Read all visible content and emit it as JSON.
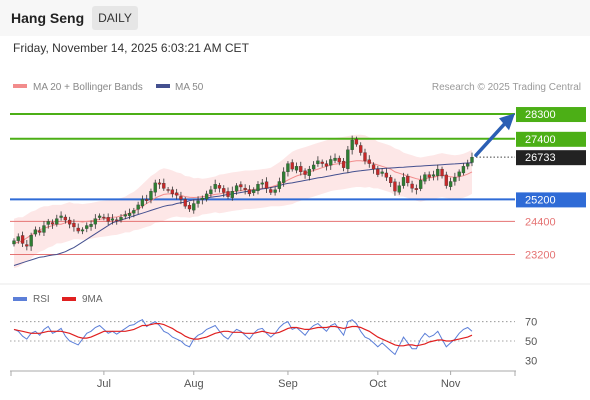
{
  "header": {
    "symbol": "Hang Seng",
    "period": "DAILY",
    "datetime": "Friday, November 14, 2025 6:03:21 AM CET"
  },
  "legend": {
    "ma20_label": "MA 20 + Bollinger Bands",
    "ma50_label": "MA 50",
    "credit": "Research © 2025 Trading Central"
  },
  "colors": {
    "up": "#2e7d32",
    "down": "#c62828",
    "ma20": "#f28c8c",
    "ma50": "#44508f",
    "band": "#fde3e3",
    "resistance": "#4caf16",
    "support": "#2f6bd6",
    "minor_support": "#e57373",
    "last": "#222222",
    "arrow": "#2b5fb4",
    "rsi": "#5c7fd8",
    "rsi_ma": "#e02020"
  },
  "rsi_panel": {
    "rsi_label": "RSI",
    "ma_label": "9MA"
  },
  "chart_data": [
    {
      "type": "candlestick",
      "y_range": [
        22200,
        29100
      ],
      "x_labels": [
        "Jul",
        "Aug",
        "Sep",
        "Oct",
        "Nov"
      ],
      "levels": [
        {
          "value": 28300,
          "label": "28300",
          "role": "resistance"
        },
        {
          "value": 27400,
          "label": "27400",
          "role": "resistance"
        },
        {
          "value": 26733,
          "label": "26733",
          "role": "last"
        },
        {
          "value": 25200,
          "label": "25200",
          "role": "support"
        },
        {
          "value": 24400,
          "label": "24400",
          "role": "minor_support"
        },
        {
          "value": 23200,
          "label": "23200",
          "role": "minor_support"
        }
      ],
      "closes": [
        23700,
        23850,
        23600,
        23500,
        23900,
        24100,
        24000,
        24250,
        24400,
        24300,
        24500,
        24600,
        24450,
        24300,
        24200,
        24050,
        24100,
        24250,
        24300,
        24500,
        24600,
        24550,
        24400,
        24500,
        24450,
        24550,
        24650,
        24700,
        24800,
        25000,
        25200,
        25150,
        25500,
        25800,
        25750,
        25600,
        25550,
        25400,
        25350,
        25200,
        24950,
        24850,
        25050,
        25150,
        25250,
        25400,
        25550,
        25750,
        25600,
        25450,
        25300,
        25500,
        25700,
        25650,
        25550,
        25400,
        25550,
        25750,
        25800,
        25600,
        25450,
        25550,
        25850,
        26200,
        26500,
        26300,
        26400,
        26200,
        26100,
        26300,
        26450,
        26600,
        26500,
        26400,
        26650,
        26700,
        26550,
        26350,
        27000,
        27350,
        27200,
        26900,
        26600,
        26500,
        26300,
        26100,
        26200,
        26000,
        25800,
        25500,
        25700,
        26000,
        25800,
        25600,
        25550,
        25900,
        26100,
        26000,
        26100,
        26300,
        26050,
        25700,
        25850,
        26000,
        26200,
        26400,
        26500,
        26733
      ],
      "ma20": [
        23600,
        23650,
        23700,
        23800,
        23900,
        24000,
        24100,
        24150,
        24200,
        24250,
        24300,
        24300,
        24350,
        24400,
        24400,
        24400,
        24380,
        24400,
        24420,
        24450,
        24480,
        24500,
        24520,
        24550,
        24560,
        24600,
        24650,
        24700,
        24780,
        24850,
        24950,
        25050,
        25150,
        25250,
        25320,
        25380,
        25400,
        25400,
        25380,
        25350,
        25300,
        25280,
        25270,
        25280,
        25300,
        25320,
        25350,
        25380,
        25400,
        25420,
        25450,
        25480,
        25500,
        25520,
        25550,
        25550,
        25560,
        25580,
        25600,
        25620,
        25650,
        25700,
        25750,
        25820,
        25900,
        25980,
        26050,
        26100,
        26150,
        26200,
        26250,
        26300,
        26350,
        26400,
        26450,
        26480,
        26500,
        26520,
        26550,
        26580,
        26600,
        26600,
        26580,
        26550,
        26500,
        26450,
        26400,
        26350,
        26300,
        26200,
        26150,
        26100,
        26050,
        26000,
        25950,
        25920,
        25950,
        25980,
        26000,
        26050,
        26080,
        26050,
        26020,
        26000,
        26020,
        26060,
        26120,
        26200
      ],
      "ma50": [
        22800,
        22850,
        22900,
        22950,
        23000,
        23050,
        23100,
        23120,
        23150,
        23180,
        23200,
        23250,
        23300,
        23380,
        23450,
        23550,
        23650,
        23750,
        23850,
        23950,
        24050,
        24150,
        24250,
        24350,
        24400,
        24450,
        24500,
        24550,
        24600,
        24650,
        24700,
        24750,
        24800,
        24850,
        24900,
        24950,
        24980,
        25000,
        25050,
        25080,
        25100,
        25150,
        25180,
        25200,
        25220,
        25250,
        25280,
        25300,
        25320,
        25350,
        25380,
        25400,
        25420,
        25450,
        25480,
        25500,
        25520,
        25550,
        25580,
        25600,
        25630,
        25660,
        25700,
        25750,
        25780,
        25800,
        25830,
        25860,
        25890,
        25920,
        25950,
        25980,
        26000,
        26030,
        26060,
        26090,
        26120,
        26150,
        26170,
        26200,
        26220,
        26240,
        26260,
        26280,
        26300,
        26310,
        26320,
        26330,
        26340,
        26350,
        26360,
        26370,
        26380,
        26390,
        26400,
        26410,
        26420,
        26430,
        26440,
        26450,
        26460,
        26470,
        26480,
        26490,
        26500,
        26510,
        26520,
        26530
      ],
      "band_width": [
        900,
        900,
        850,
        850,
        850,
        800,
        800,
        800,
        750,
        750,
        700,
        700,
        700,
        700,
        650,
        650,
        650,
        650,
        650,
        650,
        650,
        650,
        650,
        650,
        650,
        650,
        650,
        700,
        700,
        750,
        800,
        850,
        900,
        900,
        950,
        950,
        900,
        850,
        800,
        800,
        750,
        750,
        700,
        700,
        650,
        650,
        650,
        650,
        700,
        700,
        700,
        700,
        700,
        700,
        700,
        700,
        700,
        700,
        700,
        700,
        700,
        750,
        800,
        850,
        900,
        950,
        950,
        950,
        950,
        950,
        950,
        950,
        950,
        950,
        950,
        950,
        950,
        950,
        950,
        950,
        950,
        950,
        950,
        900,
        900,
        850,
        850,
        850,
        850,
        850,
        850,
        800,
        800,
        800,
        800,
        800,
        800,
        800,
        800,
        800,
        800,
        800,
        800,
        800,
        800,
        800,
        800,
        800
      ]
    },
    {
      "type": "line",
      "title": "RSI",
      "y_ticks": [
        70,
        50,
        30
      ],
      "y_range": [
        20,
        80
      ],
      "rsi": [
        62,
        60,
        55,
        52,
        58,
        60,
        56,
        62,
        65,
        58,
        60,
        63,
        55,
        50,
        48,
        46,
        52,
        58,
        60,
        64,
        66,
        62,
        58,
        60,
        57,
        60,
        63,
        66,
        67,
        70,
        72,
        65,
        68,
        70,
        66,
        60,
        58,
        54,
        52,
        50,
        46,
        44,
        52,
        56,
        58,
        62,
        64,
        66,
        60,
        55,
        52,
        58,
        62,
        60,
        56,
        52,
        58,
        62,
        63,
        58,
        54,
        58,
        64,
        68,
        70,
        62,
        64,
        60,
        56,
        62,
        66,
        68,
        64,
        60,
        66,
        68,
        62,
        56,
        70,
        72,
        68,
        60,
        54,
        52,
        48,
        44,
        48,
        44,
        40,
        36,
        45,
        54,
        48,
        42,
        42,
        52,
        58,
        54,
        56,
        60,
        52,
        44,
        48,
        52,
        58,
        62,
        64,
        60
      ],
      "rsi_ma": [
        62,
        61,
        60,
        59,
        58,
        58,
        58,
        59,
        60,
        60,
        60,
        60,
        59,
        58,
        56,
        54,
        53,
        53,
        54,
        56,
        58,
        60,
        60,
        60,
        60,
        60,
        60,
        61,
        62,
        64,
        66,
        66,
        67,
        68,
        68,
        67,
        65,
        63,
        60,
        58,
        55,
        53,
        52,
        52,
        53,
        54,
        56,
        58,
        59,
        60,
        60,
        59,
        59,
        59,
        58,
        58,
        58,
        59,
        60,
        59,
        58,
        58,
        59,
        61,
        63,
        64,
        64,
        63,
        62,
        62,
        63,
        64,
        64,
        64,
        65,
        65,
        64,
        63,
        64,
        65,
        65,
        64,
        62,
        60,
        57,
        54,
        52,
        50,
        48,
        46,
        45,
        45,
        46,
        46,
        45,
        46,
        47,
        49,
        50,
        51,
        51,
        50,
        50,
        51,
        52,
        53,
        54,
        56
      ]
    }
  ]
}
